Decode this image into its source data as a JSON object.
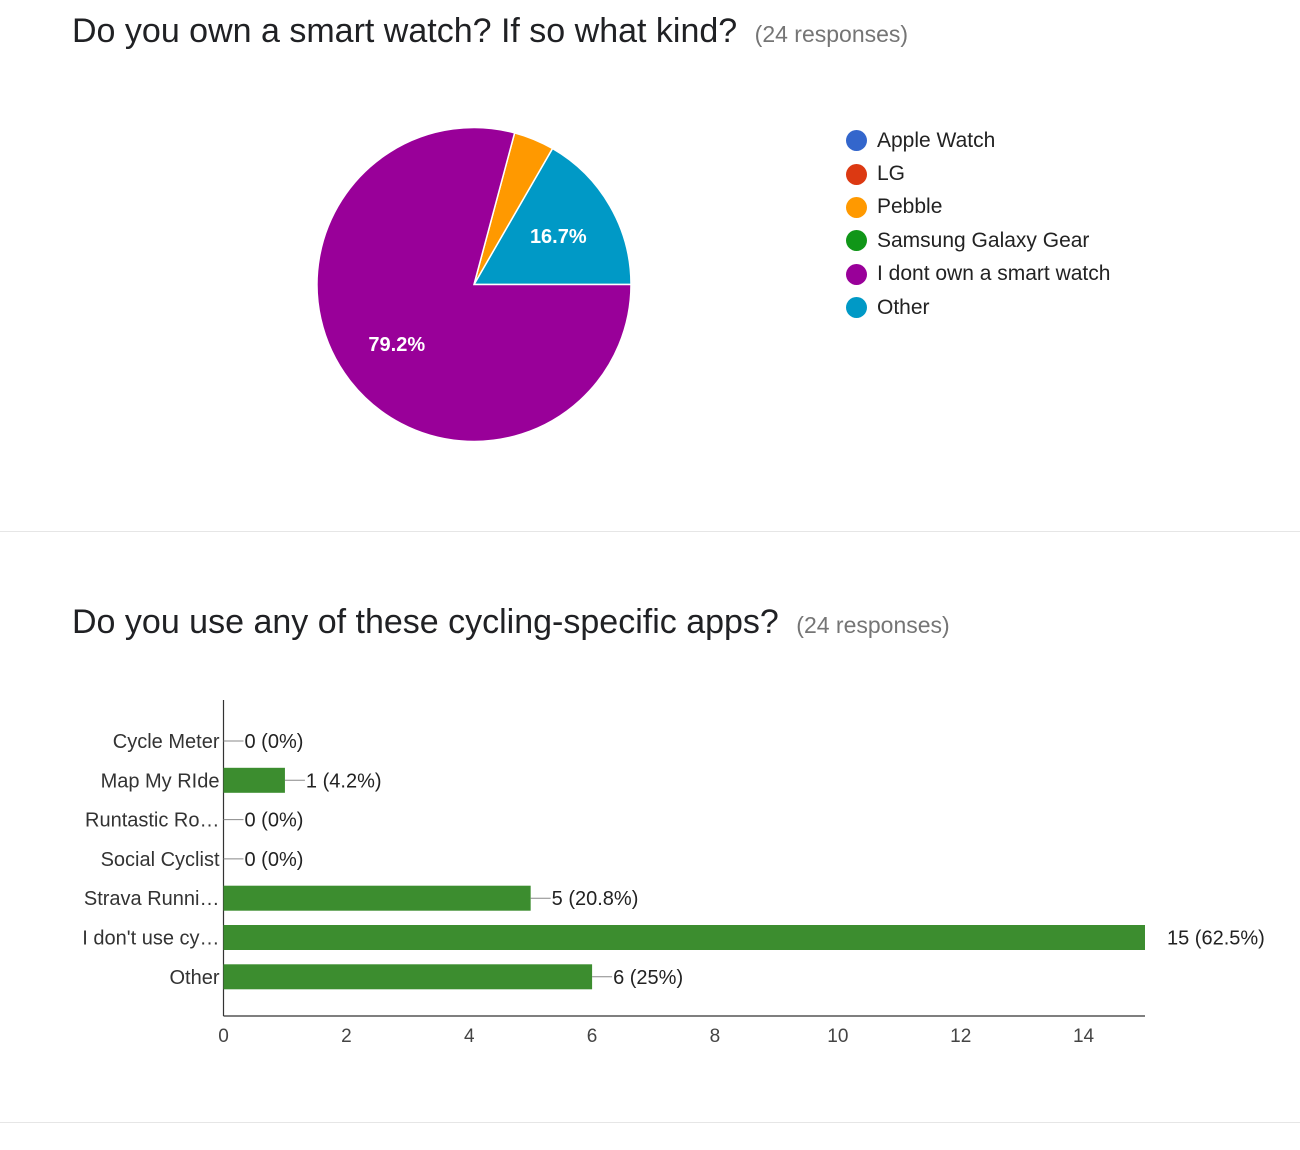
{
  "questions": [
    {
      "title": "Do you own a smart watch? If so what kind?",
      "responses": "(24 responses)"
    },
    {
      "title": "Do you use any of these cycling-specific apps?",
      "responses": "(24 responses)"
    }
  ],
  "chart_data": [
    {
      "type": "pie",
      "title": "Do you own a smart watch? If so what kind?",
      "labels": [
        "Apple Watch",
        "LG",
        "Pebble",
        "Samsung Galaxy Gear",
        "I dont own a smart watch",
        "Other"
      ],
      "values": [
        0,
        0,
        1,
        0,
        19,
        4
      ],
      "colors": [
        "#3366cc",
        "#dc3912",
        "#ff9900",
        "#109618",
        "#990099",
        "#0099c6"
      ],
      "slice_labels": [
        "",
        "",
        "",
        "",
        "79.2%",
        "16.7%"
      ],
      "legend_position": "right"
    },
    {
      "type": "bar",
      "orientation": "horizontal",
      "title": "Do you use any of these cycling-specific apps?",
      "categories": [
        "Cycle Meter",
        "Map My RIde",
        "Runtastic Ro…",
        "Social Cyclist",
        "Strava Runni…",
        "I don't use cy…",
        "Other"
      ],
      "values": [
        0,
        1,
        0,
        0,
        5,
        15,
        6
      ],
      "data_labels": [
        "0 (0%)",
        "1 (4.2%)",
        "0 (0%)",
        "0 (0%)",
        "5 (20.8%)",
        "15 (62.5%)",
        "6 (25%)"
      ],
      "x_ticks": [
        "0",
        "2",
        "4",
        "6",
        "8",
        "10",
        "12",
        "14"
      ],
      "xlim": [
        0,
        15
      ],
      "color": "#3c8d2f"
    }
  ]
}
